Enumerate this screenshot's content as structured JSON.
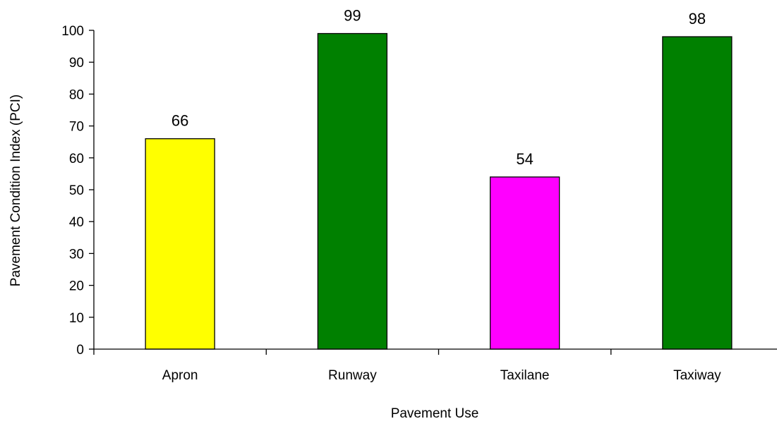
{
  "chart_data": {
    "type": "bar",
    "title": "",
    "xlabel": "Pavement Use",
    "ylabel": "Pavement Condition Index (PCI)",
    "ylim": [
      0,
      100
    ],
    "yticks": [
      0,
      10,
      20,
      30,
      40,
      50,
      60,
      70,
      80,
      90,
      100
    ],
    "ytick_labels": [
      "0",
      "10",
      "20",
      "30",
      "40",
      "50",
      "60",
      "70",
      "80",
      "90",
      "100"
    ],
    "categories": [
      "Apron",
      "Runway",
      "Taxilane",
      "Taxiway"
    ],
    "values": [
      66,
      99,
      54,
      98
    ],
    "data_labels": [
      "66",
      "99",
      "54",
      "98"
    ],
    "bar_colors": [
      "#FFFF00",
      "#008000",
      "#FF00FF",
      "#008000"
    ],
    "bar_edge_color": "#000000",
    "grid": false,
    "legend": "none"
  }
}
